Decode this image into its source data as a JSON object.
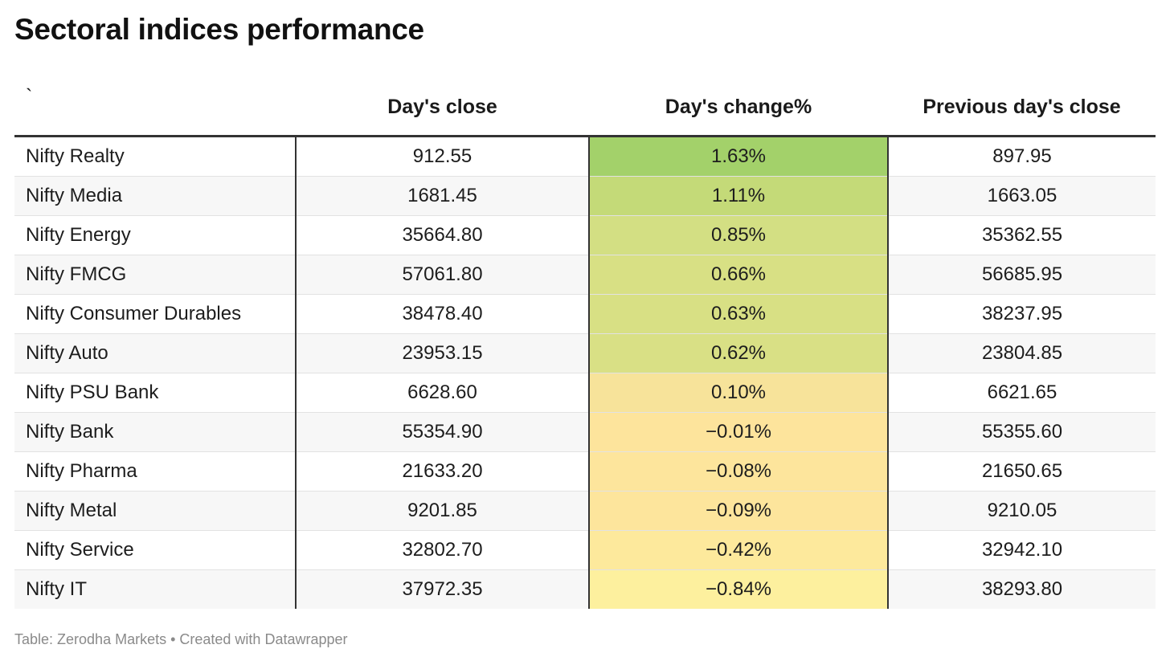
{
  "title": "Sectoral indices performance",
  "footer": "Table: Zerodha Markets • Created with Datawrapper",
  "chart_data": {
    "type": "table",
    "title": "Sectoral indices performance",
    "columns": [
      "`",
      "Day's close",
      "Day's change%",
      "Previous day's close"
    ],
    "rows": [
      {
        "name": "Nifty Realty",
        "close": "912.55",
        "change": "1.63%",
        "prev": "897.95",
        "color": "#a3d16a"
      },
      {
        "name": "Nifty Media",
        "close": "1681.45",
        "change": "1.11%",
        "prev": "1663.05",
        "color": "#c4da78"
      },
      {
        "name": "Nifty Energy",
        "close": "35664.80",
        "change": "0.85%",
        "prev": "35362.55",
        "color": "#d3df83"
      },
      {
        "name": "Nifty FMCG",
        "close": "57061.80",
        "change": "0.66%",
        "prev": "56685.95",
        "color": "#d8e084"
      },
      {
        "name": "Nifty Consumer Durables",
        "close": "38478.40",
        "change": "0.63%",
        "prev": "38237.95",
        "color": "#d8e084"
      },
      {
        "name": "Nifty Auto",
        "close": "23953.15",
        "change": "0.62%",
        "prev": "23804.85",
        "color": "#d9e085"
      },
      {
        "name": "Nifty PSU Bank",
        "close": "6628.60",
        "change": "0.10%",
        "prev": "6621.65",
        "color": "#f7e39a"
      },
      {
        "name": "Nifty Bank",
        "close": "55354.90",
        "change": "−0.01%",
        "prev": "55355.60",
        "color": "#fde49c"
      },
      {
        "name": "Nifty Pharma",
        "close": "21633.20",
        "change": "−0.08%",
        "prev": "21650.65",
        "color": "#fde59c"
      },
      {
        "name": "Nifty Metal",
        "close": "9201.85",
        "change": "−0.09%",
        "prev": "9210.05",
        "color": "#fde59c"
      },
      {
        "name": "Nifty Service",
        "close": "32802.70",
        "change": "−0.42%",
        "prev": "32942.10",
        "color": "#fde99c"
      },
      {
        "name": "Nifty IT",
        "close": "37972.35",
        "change": "−0.84%",
        "prev": "38293.80",
        "color": "#fdf09e"
      }
    ]
  }
}
